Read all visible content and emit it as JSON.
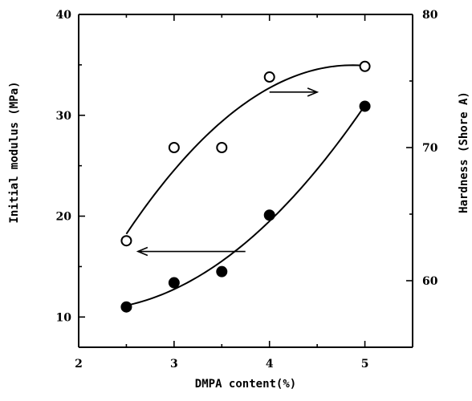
{
  "chart_data": {
    "type": "scatter",
    "title": "",
    "xlabel": "DMPA content(%)",
    "ylabel": "Initial modulus (MPa)",
    "y2label": "Hardness (Shore A)",
    "xlim": [
      2,
      5.5
    ],
    "ylim": [
      7,
      40
    ],
    "y2lim": [
      55,
      80
    ],
    "x_ticks": [
      2,
      3,
      4,
      5
    ],
    "y_ticks": [
      10,
      20,
      30,
      40
    ],
    "y2_ticks": [
      60,
      70,
      80
    ],
    "grid": false,
    "legend": "none",
    "series": [
      {
        "axis": "left",
        "marker": "filled-circle",
        "x": [
          2.5,
          3.0,
          3.5,
          4.0,
          5.0
        ],
        "y": [
          11.0,
          13.4,
          14.5,
          20.1,
          30.9
        ]
      },
      {
        "axis": "right",
        "marker": "open-circle",
        "x": [
          2.5,
          3.0,
          3.5,
          4.0,
          5.0
        ],
        "y": [
          63.0,
          70.0,
          70.0,
          75.3,
          76.1
        ]
      }
    ],
    "annotations": [
      {
        "type": "arrow",
        "direction": "left",
        "points_to": "left axis"
      },
      {
        "type": "arrow",
        "direction": "right",
        "points_to": "right axis"
      }
    ]
  }
}
